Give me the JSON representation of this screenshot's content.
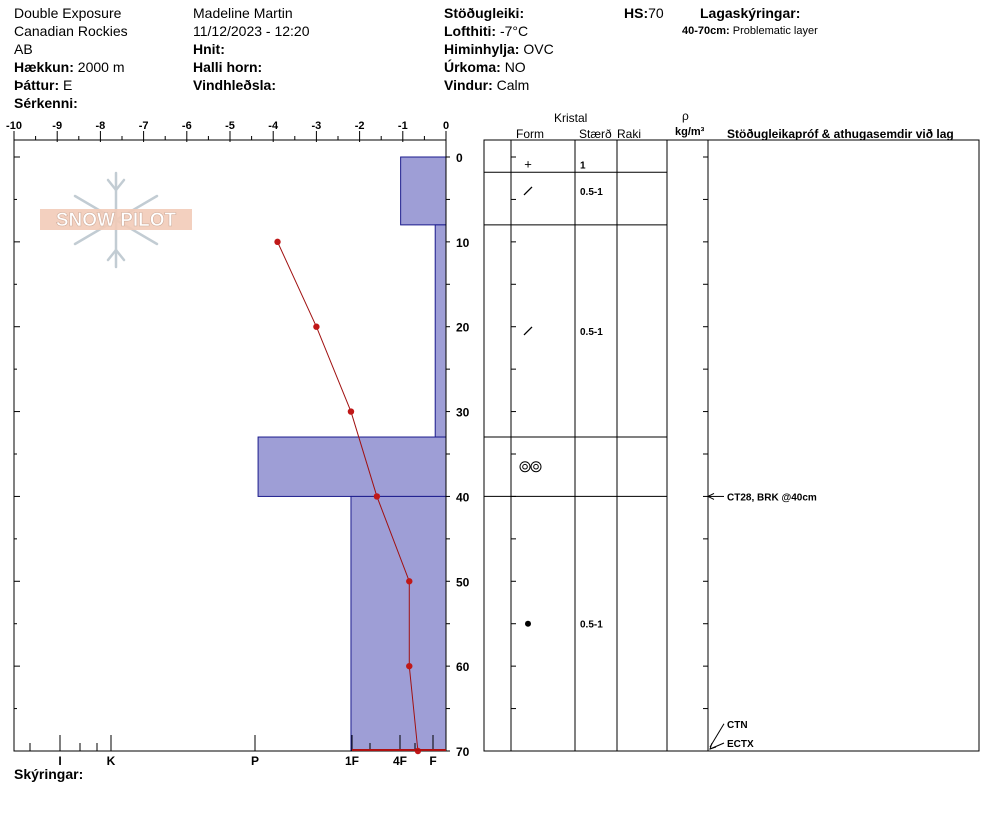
{
  "header": {
    "col1": [
      "Double Exposure",
      "Canadian Rockies",
      "AB"
    ],
    "elevation_label": "Hækkun:",
    "elevation_value": "2000 m",
    "aspect_label": "Þáttur:",
    "aspect_value": "E",
    "special_label": "Sérkenni:",
    "observer": "Madeline  Martin",
    "datetime": "11/12/2023 - 12:20",
    "coords_label": "Hnit:",
    "slope_label": "Halli horn:",
    "windload_label": "Vindhleðsla:",
    "stability_label": "Stöðugleiki:",
    "airtemp_label": "Lofthiti:",
    "airtemp_value": "-7°C",
    "sky_label": "Himinhylja:",
    "sky_value": "OVC",
    "precip_label": "Úrkoma:",
    "precip_value": "NO",
    "wind_label": "Vindur:",
    "wind_value": "Calm",
    "hs_label": "HS:",
    "hs_value": "70",
    "layer_notes_label": "Lagaskýringar:",
    "layer_note_range": "40-70cm:",
    "layer_note_text": "Problematic layer",
    "footer_label": "Skýringar:"
  },
  "logo_text": "SNOW PILOT",
  "columns": {
    "crystal_label": "Kristal",
    "form_label": "Form",
    "size_label": "Stærð",
    "moisture_label": "Raki",
    "density_symbol": "ρ",
    "density_unit": "kg/m³",
    "tests_label": "Stöðugleikapróf & athugasemdir við lag"
  },
  "chart_data": {
    "type": "line",
    "temp_axis": {
      "min": -10,
      "max": 0,
      "ticks": [
        "-10",
        "-9",
        "-8",
        "-7",
        "-6",
        "-5",
        "-4",
        "-3",
        "-2",
        "-1",
        "0"
      ]
    },
    "depth_axis": {
      "min": 0,
      "max": 70,
      "ticks": [
        "0",
        "10",
        "20",
        "30",
        "40",
        "50",
        "60",
        "70"
      ]
    },
    "hardness_labels": [
      "I",
      "K",
      "P",
      "1F",
      "4F",
      "F"
    ],
    "temperature_profile": [
      {
        "depth": 10,
        "temp": -3.9
      },
      {
        "depth": 20,
        "temp": -3.0
      },
      {
        "depth": 30,
        "temp": -2.2
      },
      {
        "depth": 40,
        "temp": -1.6
      },
      {
        "depth": 50,
        "temp": -0.85
      },
      {
        "depth": 60,
        "temp": -0.85
      },
      {
        "depth": 70,
        "temp": -0.65
      }
    ],
    "layers": [
      {
        "top": 0,
        "bottom": 8,
        "hardness_temp_units": -1.05
      },
      {
        "top": 8,
        "bottom": 33,
        "hardness_temp_units": -0.25
      },
      {
        "top": 33,
        "bottom": 40,
        "hardness_temp_units": -4.35
      },
      {
        "top": 40,
        "bottom": 70,
        "hardness_temp_units": -2.2
      }
    ],
    "grain_rows": [
      {
        "depth_center": 0.9,
        "form": "+",
        "size": "1"
      },
      {
        "depth_center": 4,
        "form": "/",
        "size": "0.5-1"
      },
      {
        "depth_center": 20.5,
        "form": "/",
        "size": "0.5-1"
      },
      {
        "depth_center": 36.5,
        "form": "◎◎",
        "size": ""
      },
      {
        "depth_center": 55,
        "form": "●",
        "size": "0.5-1"
      }
    ],
    "layer_boundaries": [
      1.8,
      8,
      33,
      40
    ],
    "tests": [
      {
        "depth": 40,
        "text": "CT28, BRK @40cm"
      },
      {
        "depth": 67.5,
        "text": "CTN"
      },
      {
        "depth": 70,
        "text": "ECTX"
      }
    ]
  }
}
